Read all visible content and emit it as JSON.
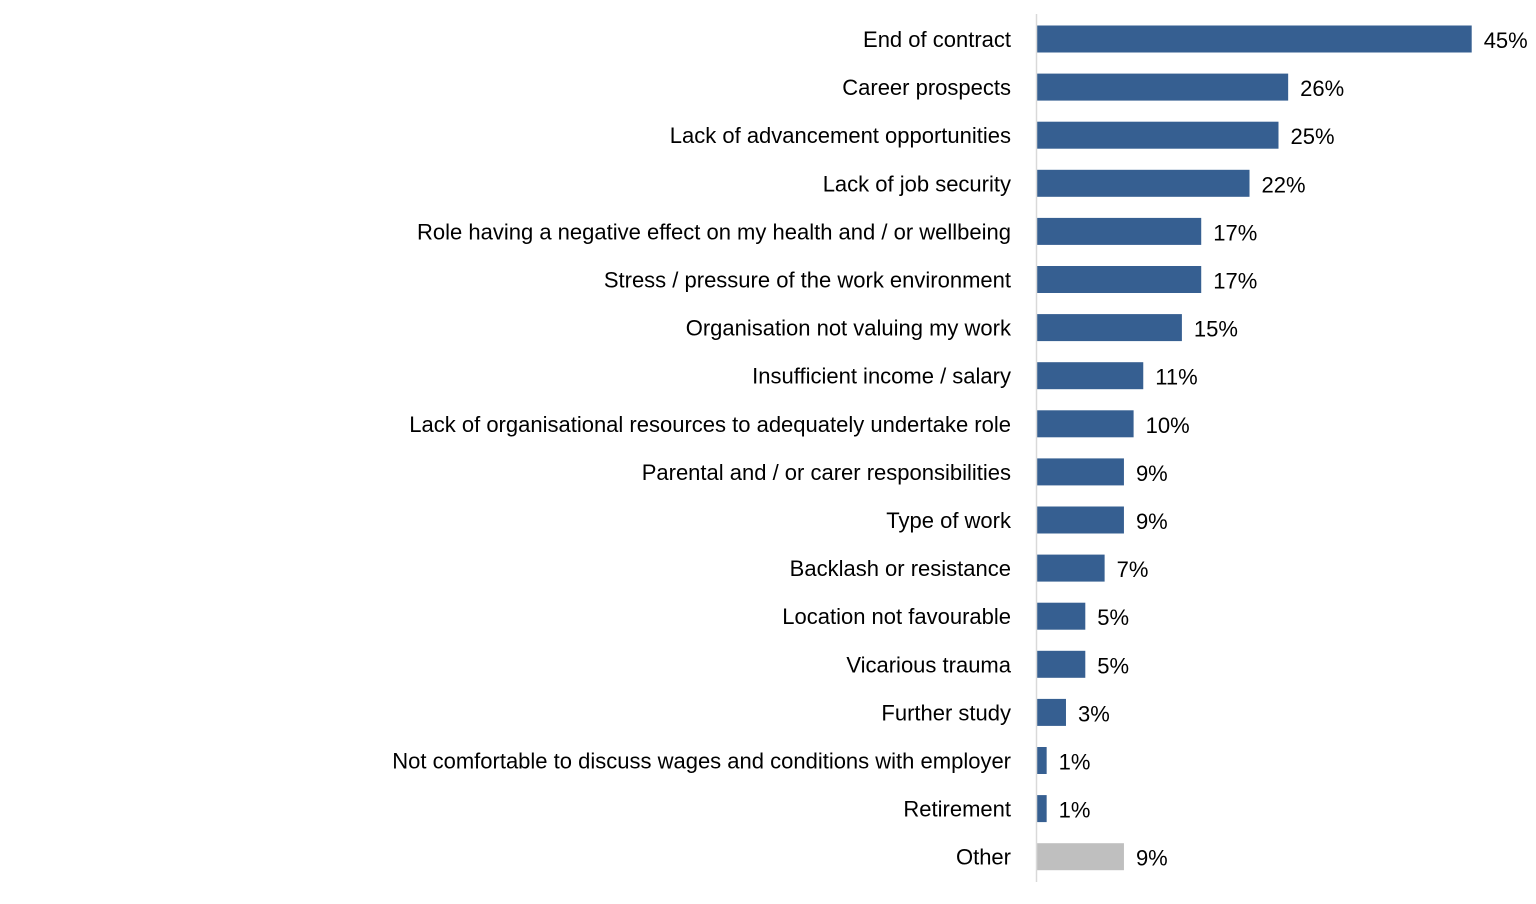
{
  "chart_data": {
    "type": "bar",
    "orientation": "horizontal",
    "title": "",
    "xlabel": "",
    "ylabel": "",
    "xlim": [
      0,
      45
    ],
    "grid": false,
    "legend": "none",
    "value_format": "percent",
    "categories": [
      "End of contract",
      "Career prospects",
      "Lack of advancement opportunities",
      "Lack of job security",
      "Role having a negative effect on my health and / or wellbeing",
      "Stress / pressure of the work environment",
      "Organisation not valuing my work",
      "Insufficient income / salary",
      "Lack of organisational resources to adequately undertake role",
      "Parental and / or carer responsibilities",
      "Type of work",
      "Backlash or resistance",
      "Location not favourable",
      "Vicarious trauma",
      "Further study",
      "Not comfortable to discuss wages and conditions with employer",
      "Retirement",
      "Other"
    ],
    "values": [
      45,
      26,
      25,
      22,
      17,
      17,
      15,
      11,
      10,
      9,
      9,
      7,
      5,
      5,
      3,
      1,
      1,
      9
    ],
    "data_labels": [
      "45%",
      "26%",
      "25%",
      "22%",
      "17%",
      "17%",
      "15%",
      "11%",
      "10%",
      "9%",
      "9%",
      "7%",
      "5%",
      "5%",
      "3%",
      "1%",
      "1%",
      "9%"
    ],
    "colors": {
      "bar": "#365F91",
      "other_bar": "#BFBFBF",
      "axis": "#D9D9D9"
    }
  }
}
